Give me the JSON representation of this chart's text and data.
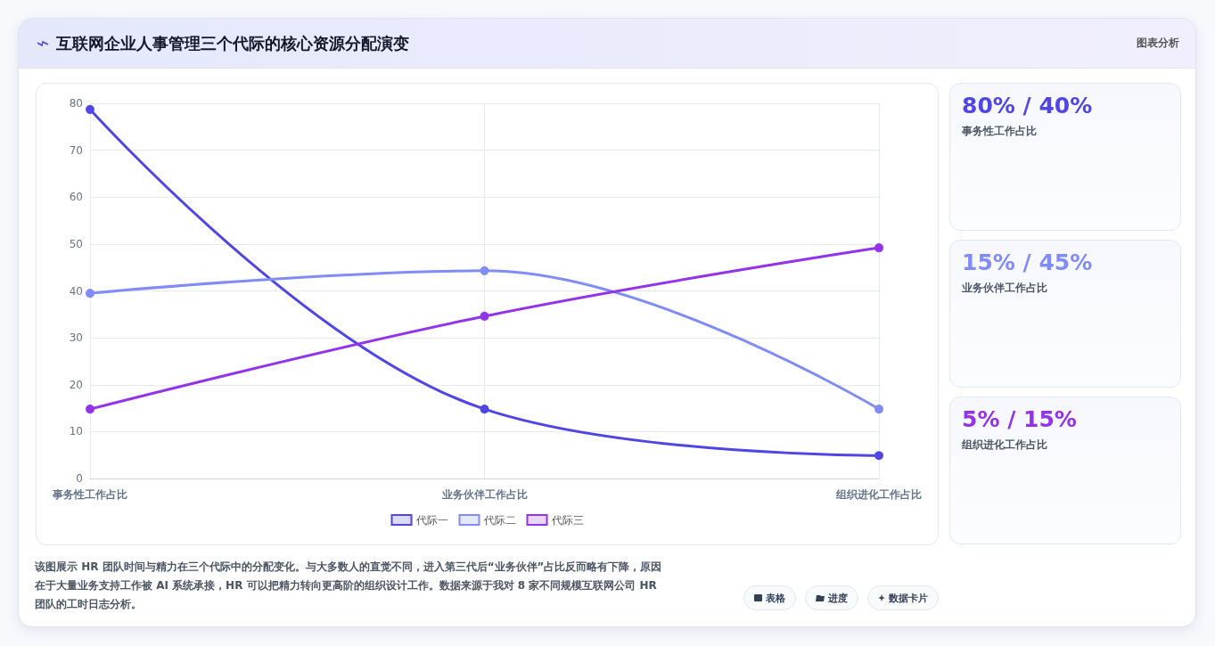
{
  "chart_data": {
    "type": "line",
    "title": "互联网企业人事管理三个代际的核心资源分配演变",
    "categories": [
      "事务性工作占比",
      "业务伙伴工作占比",
      "组织进化工作占比"
    ],
    "series": [
      {
        "name": "代际一",
        "color": "#4f46e5",
        "values": [
          78.7,
          14.8,
          4.9
        ]
      },
      {
        "name": "代际二",
        "color": "#818cf8",
        "values": [
          39.5,
          44.3,
          14.8
        ]
      },
      {
        "name": "代际三",
        "color": "#9333ea",
        "values": [
          14.8,
          34.6,
          49.2
        ]
      }
    ],
    "ylim": [
      0,
      80
    ],
    "yticks": [
      0,
      10,
      20,
      30,
      40,
      50,
      60,
      70,
      80
    ],
    "grid": true,
    "legend": "bottom",
    "marker": "circle",
    "line_style": "solid",
    "annotations": [
      "图表分析",
      "80% / 40%",
      "事务性工作占比",
      "15% / 45%",
      "业务伙伴工作占比",
      "5% / 15%",
      "组织进化工作占比",
      "该图展示 HR 团队时间与精力在三个代际中的分配变化。与大多数人的直觉不同，进入第三代后“业务伙伴”占比反而略有下降，原因在于大量业务支持工作被 AI 系统承接，HR 可以把精力转向更高阶的组织设计工作。数据来源于我对 8 家不同规模互联网公司 HR 团队的工时日志分析。",
      "表格",
      "进度",
      "数据卡片"
    ]
  }
}
